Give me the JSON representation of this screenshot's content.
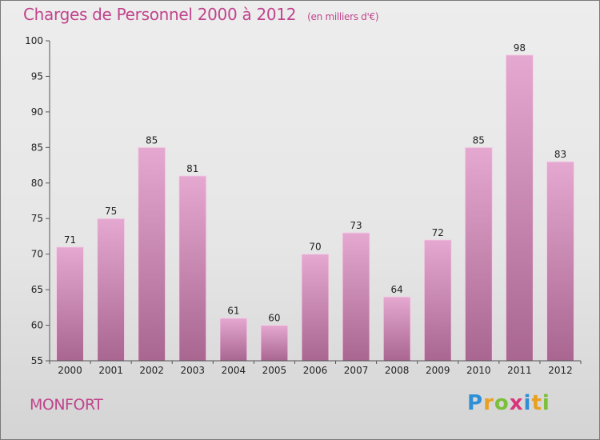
{
  "header": {
    "title": "Charges de Personnel 2000 à 2012",
    "subtitle": "(en milliers d'€)"
  },
  "footer": {
    "commune": "MONFORT",
    "logo": {
      "letters": [
        "P",
        "r",
        "o",
        "x",
        "i",
        "t",
        "i"
      ],
      "colors": [
        "#2f8fd6",
        "#e8a020",
        "#7bbf3a",
        "#d8347a",
        "#2f8fd6",
        "#e8a020",
        "#7bbf3a"
      ]
    }
  },
  "colors": {
    "accent": "#c0448c",
    "bar_top": "#e5a8d0",
    "bar_bottom": "#a86690",
    "axis": "#555555"
  },
  "chart_data": {
    "type": "bar",
    "title": "Charges de Personnel 2000 à 2012",
    "subtitle": "(en milliers d'€)",
    "categories": [
      "2000",
      "2001",
      "2002",
      "2003",
      "2004",
      "2005",
      "2006",
      "2007",
      "2008",
      "2009",
      "2010",
      "2011",
      "2012"
    ],
    "values": [
      71,
      75,
      85,
      81,
      61,
      60,
      70,
      73,
      64,
      72,
      85,
      98,
      83
    ],
    "ylim": [
      55,
      100
    ],
    "yticks": [
      55,
      60,
      65,
      70,
      75,
      80,
      85,
      90,
      95,
      100
    ],
    "grid": false,
    "data_labels": true
  }
}
